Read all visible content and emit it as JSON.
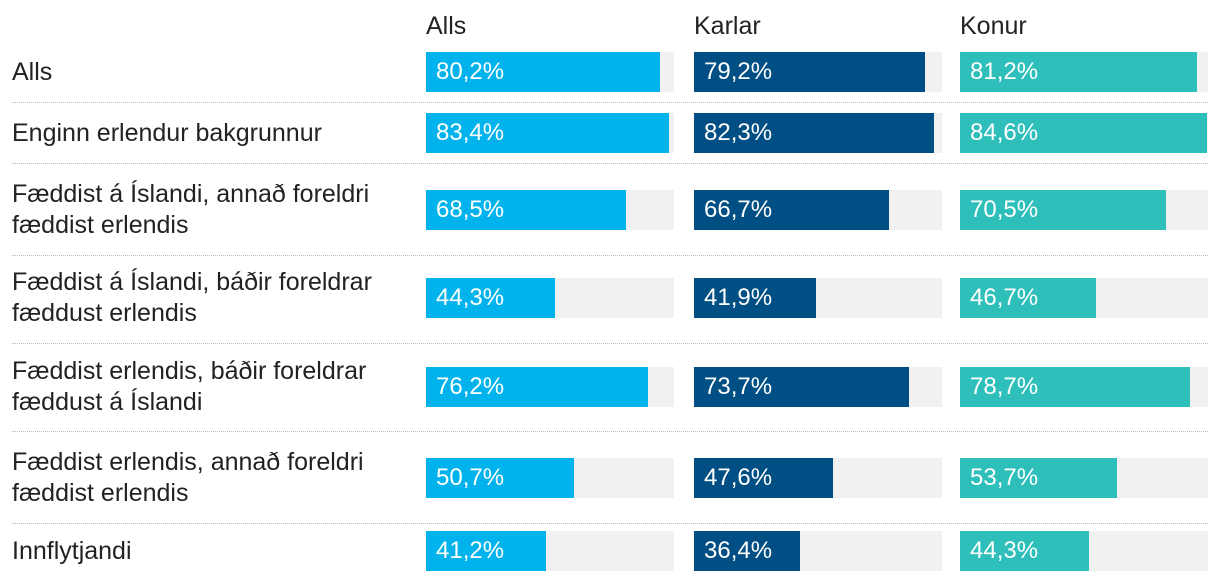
{
  "chart_data": {
    "type": "bar",
    "orientation": "horizontal",
    "title": "",
    "xlabel": "",
    "ylabel": "",
    "xlim": [
      0,
      85
    ],
    "categories": [
      "Alls",
      "Enginn erlendur bakgrunnur",
      "Fæddist á Íslandi, annað foreldri fæddist erlendis",
      "Fæddist á Íslandi, báðir foreldrar fæddust erlendis",
      "Fæddist erlendis, báðir foreldrar fæddust á Íslandi",
      "Fæddist erlendis, annað foreldri fæddist erlendis",
      "Innflytjandi"
    ],
    "series": [
      {
        "name": "Alls",
        "color": "#00b3ec",
        "values": [
          80.2,
          83.4,
          68.5,
          44.3,
          76.2,
          50.7,
          41.2
        ],
        "labels": [
          "80,2%",
          "83,4%",
          "68,5%",
          "44,3%",
          "76,2%",
          "50,7%",
          "41,2%"
        ]
      },
      {
        "name": "Karlar",
        "color": "#004f84",
        "values": [
          79.2,
          82.3,
          66.7,
          41.9,
          73.7,
          47.6,
          36.4
        ],
        "labels": [
          "79,2%",
          "82,3%",
          "66,7%",
          "41,9%",
          "73,7%",
          "47,6%",
          "36,4%"
        ]
      },
      {
        "name": "Konur",
        "color": "#2ebfbb",
        "values": [
          81.2,
          84.6,
          70.5,
          46.7,
          78.7,
          53.7,
          44.3
        ],
        "labels": [
          "81,2%",
          "84,6%",
          "70,5%",
          "46,7%",
          "78,7%",
          "53,7%",
          "44,3%"
        ]
      }
    ],
    "grid": false,
    "legend": "top"
  }
}
